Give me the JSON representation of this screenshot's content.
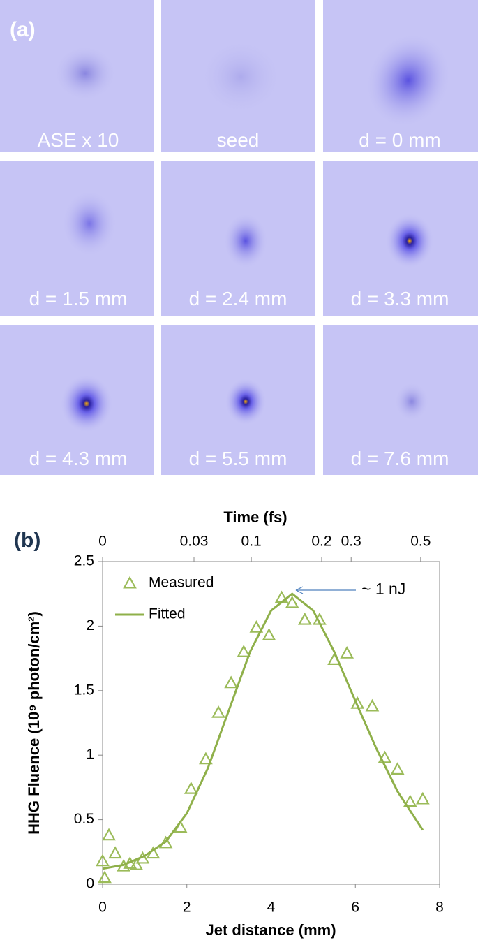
{
  "panel_a": {
    "label": "(a)",
    "tiles": [
      "ASE x 10",
      "seed",
      "d = 0 mm",
      "d = 1.5 mm",
      "d = 2.4 mm",
      "d = 3.3 mm",
      "d = 4.3 mm",
      "d = 5.5 mm",
      "d = 7.6 mm"
    ]
  },
  "chart_data": {
    "type": "scatter",
    "panel_label": "(b)",
    "x_label": "Jet distance (mm)",
    "y_label": "HHG Fluence (10⁹ photon/cm²)",
    "x2_label": "Time (fs)",
    "annotation": "~ 1 nJ",
    "xlim": [
      0,
      8
    ],
    "xticks": [
      0,
      2,
      4,
      6,
      8
    ],
    "ylim": [
      0,
      2.5
    ],
    "yticks": [
      0,
      0.5,
      1,
      1.5,
      2,
      2.5
    ],
    "x2ticks": [
      {
        "value": 0,
        "label": "0"
      },
      {
        "value": 2.17,
        "label": "0.03"
      },
      {
        "value": 3.53,
        "label": "0.1"
      },
      {
        "value": 5.2,
        "label": "0.2"
      },
      {
        "value": 5.9,
        "label": "0.3"
      },
      {
        "value": 7.55,
        "label": "0.5"
      }
    ],
    "series": [
      {
        "name": "Measured",
        "color": "#9bbb59",
        "marker": "triangle",
        "x": [
          0,
          0.05,
          0.15,
          0.3,
          0.5,
          0.65,
          0.8,
          0.95,
          1.2,
          1.5,
          1.85,
          2.1,
          2.45,
          2.75,
          3.05,
          3.35,
          3.65,
          3.95,
          4.25,
          4.5,
          4.8,
          5.15,
          5.5,
          5.8,
          6.05,
          6.4,
          6.7,
          7,
          7.3,
          7.6
        ],
        "values": [
          0.18,
          0.05,
          0.38,
          0.24,
          0.14,
          0.16,
          0.15,
          0.2,
          0.24,
          0.32,
          0.44,
          0.74,
          0.97,
          1.33,
          1.56,
          1.8,
          1.99,
          1.93,
          2.22,
          2.18,
          2.05,
          2.05,
          1.74,
          1.79,
          1.4,
          1.38,
          0.98,
          0.89,
          0.64,
          0.66
        ]
      },
      {
        "name": "Fitted",
        "color": "#8fb04a",
        "marker": "line",
        "x": [
          0,
          0.5,
          1,
          1.5,
          2,
          2.5,
          3,
          3.5,
          4,
          4.5,
          5,
          5.5,
          6,
          6.5,
          7,
          7.6
        ],
        "values": [
          0.12,
          0.15,
          0.22,
          0.33,
          0.55,
          0.9,
          1.35,
          1.8,
          2.12,
          2.25,
          2.12,
          1.8,
          1.42,
          1.05,
          0.72,
          0.42
        ]
      }
    ]
  }
}
